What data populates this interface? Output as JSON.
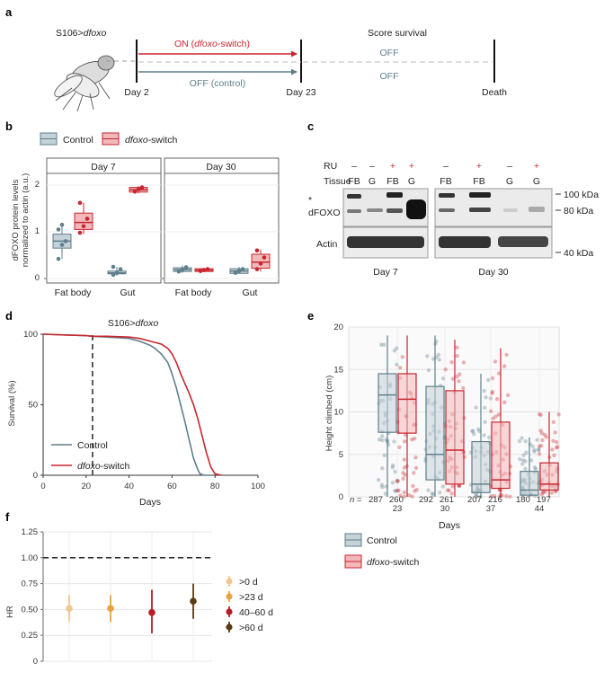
{
  "colors": {
    "control": "#5f7f8c",
    "control_fill": "#c5d2d7",
    "switch": "#c8262f",
    "switch_fill": "#f2b8ba",
    "hr_colors": [
      "#f3c58f",
      "#e8a244",
      "#b81e25",
      "#5a3a12"
    ]
  },
  "panel_a": {
    "letter": "a",
    "genotype": "S106>",
    "genotype_italic": "dfoxo",
    "day2": "Day 2",
    "day23": "Day 23",
    "death": "Death",
    "score": "Score survival",
    "on_prefix": "ON (",
    "on_italic": "dfoxo",
    "on_suffix": "-switch)",
    "off_control": "OFF (control)",
    "off1": "OFF",
    "off2": "OFF"
  },
  "panel_b": {
    "letter": "b",
    "legend_control": "Control",
    "legend_switch_italic": "dfoxo",
    "legend_switch_suffix": "-switch",
    "ylabel1": "dFOXO protein levels",
    "ylabel2": "normalized to actin (a.u.)",
    "facets": [
      "Day 7",
      "Day 30"
    ],
    "xcats": [
      "Fat body",
      "Gut"
    ],
    "yticks": [
      "0",
      "1",
      "2"
    ]
  },
  "panel_c": {
    "letter": "c",
    "ru_label": "RU",
    "tissue_label": "Tissue",
    "star": "*",
    "dfoxo_label": "dFOXO",
    "actin_label": "Actin",
    "ru": [
      "–",
      "–",
      "+",
      "+",
      "–",
      "+",
      "–",
      "+"
    ],
    "tissue": [
      "FB",
      "G",
      "FB",
      "G",
      "FB",
      "FB",
      "G",
      "G"
    ],
    "kda": [
      "100 kDa",
      "80 kDa",
      "40 kDa"
    ],
    "days": [
      "Day 7",
      "Day 30"
    ]
  },
  "panel_d": {
    "letter": "d",
    "title_prefix": "S106>",
    "title_italic": "dfoxo",
    "ylabel": "Survival (%)",
    "xlabel": "Days",
    "legend_control": "Control",
    "legend_switch_italic": "dfoxo",
    "legend_switch_suffix": "-switch"
  },
  "panel_e": {
    "letter": "e",
    "ylabel": "Height climbed (cm)",
    "xlabel": "Days",
    "n_label": "n = ",
    "n_values": [
      "287",
      "260",
      "292",
      "261",
      "207",
      "216",
      "180",
      "197"
    ],
    "legend_control": "Control",
    "legend_switch_italic": "dfoxo",
    "legend_switch_suffix": "-switch"
  },
  "panel_f": {
    "letter": "f",
    "ylabel": "HR"
  },
  "chart_data": [
    {
      "type": "box",
      "panel": "b",
      "title": "",
      "ylabel": "dFOXO protein levels normalized to actin (a.u.)",
      "ylim": [
        0,
        2.2
      ],
      "yticks": [
        0,
        1,
        2
      ],
      "facets": [
        "Day 7",
        "Day 30"
      ],
      "categories": [
        "Fat body",
        "Gut"
      ],
      "series": [
        {
          "name": "Control",
          "boxes": [
            {
              "facet": "Day 7",
              "x": "Fat body",
              "q1": 0.65,
              "median": 0.8,
              "q3": 0.95,
              "min": 0.42,
              "max": 1.15,
              "points": [
                0.42,
                0.72,
                0.8,
                1.05,
                1.15
              ]
            },
            {
              "facet": "Day 7",
              "x": "Gut",
              "q1": 0.1,
              "median": 0.12,
              "q3": 0.16,
              "min": 0.06,
              "max": 0.25,
              "points": [
                0.08,
                0.12,
                0.2,
                0.25
              ]
            },
            {
              "facet": "Day 30",
              "x": "Fat body",
              "q1": 0.15,
              "median": 0.19,
              "q3": 0.23,
              "min": 0.12,
              "max": 0.28,
              "points": [
                0.15,
                0.19,
                0.24
              ]
            },
            {
              "facet": "Day 30",
              "x": "Gut",
              "q1": 0.11,
              "median": 0.16,
              "q3": 0.21,
              "min": 0.1,
              "max": 0.25,
              "points": [
                0.12,
                0.16,
                0.2
              ]
            }
          ]
        },
        {
          "name": "dfoxo-switch",
          "boxes": [
            {
              "facet": "Day 7",
              "x": "Fat body",
              "q1": 1.05,
              "median": 1.2,
              "q3": 1.4,
              "min": 0.95,
              "max": 1.62,
              "points": [
                0.98,
                1.12,
                1.28,
                1.62
              ]
            },
            {
              "facet": "Day 7",
              "x": "Gut",
              "q1": 1.85,
              "median": 1.9,
              "q3": 1.95,
              "min": 1.82,
              "max": 1.98,
              "points": [
                1.86,
                1.91,
                1.95
              ]
            },
            {
              "facet": "Day 30",
              "x": "Fat body",
              "q1": 0.15,
              "median": 0.18,
              "q3": 0.21,
              "min": 0.14,
              "max": 0.23,
              "points": [
                0.16,
                0.18,
                0.2
              ]
            },
            {
              "facet": "Day 30",
              "x": "Gut",
              "q1": 0.22,
              "median": 0.35,
              "q3": 0.52,
              "min": 0.15,
              "max": 0.62,
              "points": [
                0.2,
                0.32,
                0.45,
                0.6
              ]
            }
          ]
        }
      ]
    },
    {
      "type": "line",
      "panel": "d",
      "title": "S106>dfoxo",
      "xlabel": "Days",
      "ylabel": "Survival (%)",
      "xlim": [
        0,
        100
      ],
      "ylim": [
        0,
        100
      ],
      "xticks": [
        0,
        20,
        40,
        60,
        80,
        100
      ],
      "yticks": [
        0,
        50,
        100
      ],
      "vline_x": 23,
      "series": [
        {
          "name": "Control",
          "x": [
            0,
            10,
            20,
            23,
            30,
            40,
            45,
            50,
            52,
            55,
            58,
            60,
            62,
            64,
            66,
            68,
            70,
            72,
            73,
            75,
            78
          ],
          "y": [
            100,
            99.5,
            99,
            98.5,
            98,
            97,
            95,
            92,
            90,
            86,
            80,
            72,
            62,
            50,
            38,
            25,
            12,
            4,
            1,
            0,
            0
          ]
        },
        {
          "name": "dfoxo-switch",
          "x": [
            0,
            10,
            20,
            23,
            30,
            40,
            45,
            50,
            55,
            58,
            60,
            62,
            64,
            66,
            68,
            70,
            72,
            74,
            76,
            78,
            80,
            83
          ],
          "y": [
            100,
            99.5,
            99,
            98.5,
            98.5,
            98,
            97,
            95,
            93,
            90,
            86,
            80,
            72,
            65,
            58,
            50,
            40,
            28,
            16,
            6,
            1,
            0
          ]
        }
      ]
    },
    {
      "type": "box",
      "panel": "e",
      "xlabel": "Days",
      "ylabel": "Height climbed (cm)",
      "categories": [
        "23",
        "30",
        "37",
        "44"
      ],
      "ylim": [
        0,
        20
      ],
      "yticks": [
        0,
        5,
        10,
        15,
        20
      ],
      "series": [
        {
          "name": "Control",
          "n": [
            287,
            292,
            207,
            180
          ],
          "boxes": [
            {
              "q1": 7.6,
              "median": 12,
              "q3": 14.5,
              "min": 0,
              "max": 19
            },
            {
              "q1": 2,
              "median": 5,
              "q3": 13,
              "min": 0,
              "max": 19
            },
            {
              "q1": 0.5,
              "median": 1.5,
              "q3": 6.5,
              "min": 0,
              "max": 14.5
            },
            {
              "q1": 0.2,
              "median": 0.8,
              "q3": 3,
              "min": 0,
              "max": 7
            }
          ]
        },
        {
          "name": "dfoxo-switch",
          "n": [
            260,
            261,
            216,
            197
          ],
          "boxes": [
            {
              "q1": 7.5,
              "median": 11.5,
              "q3": 14.5,
              "min": 0,
              "max": 19
            },
            {
              "q1": 1.5,
              "median": 5.5,
              "q3": 12.5,
              "min": 0,
              "max": 18.5
            },
            {
              "q1": 1,
              "median": 2,
              "q3": 8.8,
              "min": 0,
              "max": 17.5
            },
            {
              "q1": 0.8,
              "median": 1.5,
              "q3": 4,
              "min": 0,
              "max": 10
            }
          ]
        }
      ]
    },
    {
      "type": "scatter",
      "panel": "f",
      "ylabel": "HR",
      "ylim": [
        0,
        1.25
      ],
      "yticks": [
        "0",
        "0.25",
        "0.50",
        "0.75",
        "1.00",
        "1.25"
      ],
      "hline_y": 1.0,
      "series": [
        {
          "name": ">0 d",
          "hr": 0.51,
          "low": 0.38,
          "high": 0.64
        },
        {
          "name": ">23 d",
          "hr": 0.51,
          "low": 0.38,
          "high": 0.64
        },
        {
          "name": "40–60 d",
          "hr": 0.47,
          "low": 0.27,
          "high": 0.69
        },
        {
          "name": ">60 d",
          "hr": 0.58,
          "low": 0.41,
          "high": 0.75
        }
      ]
    }
  ]
}
